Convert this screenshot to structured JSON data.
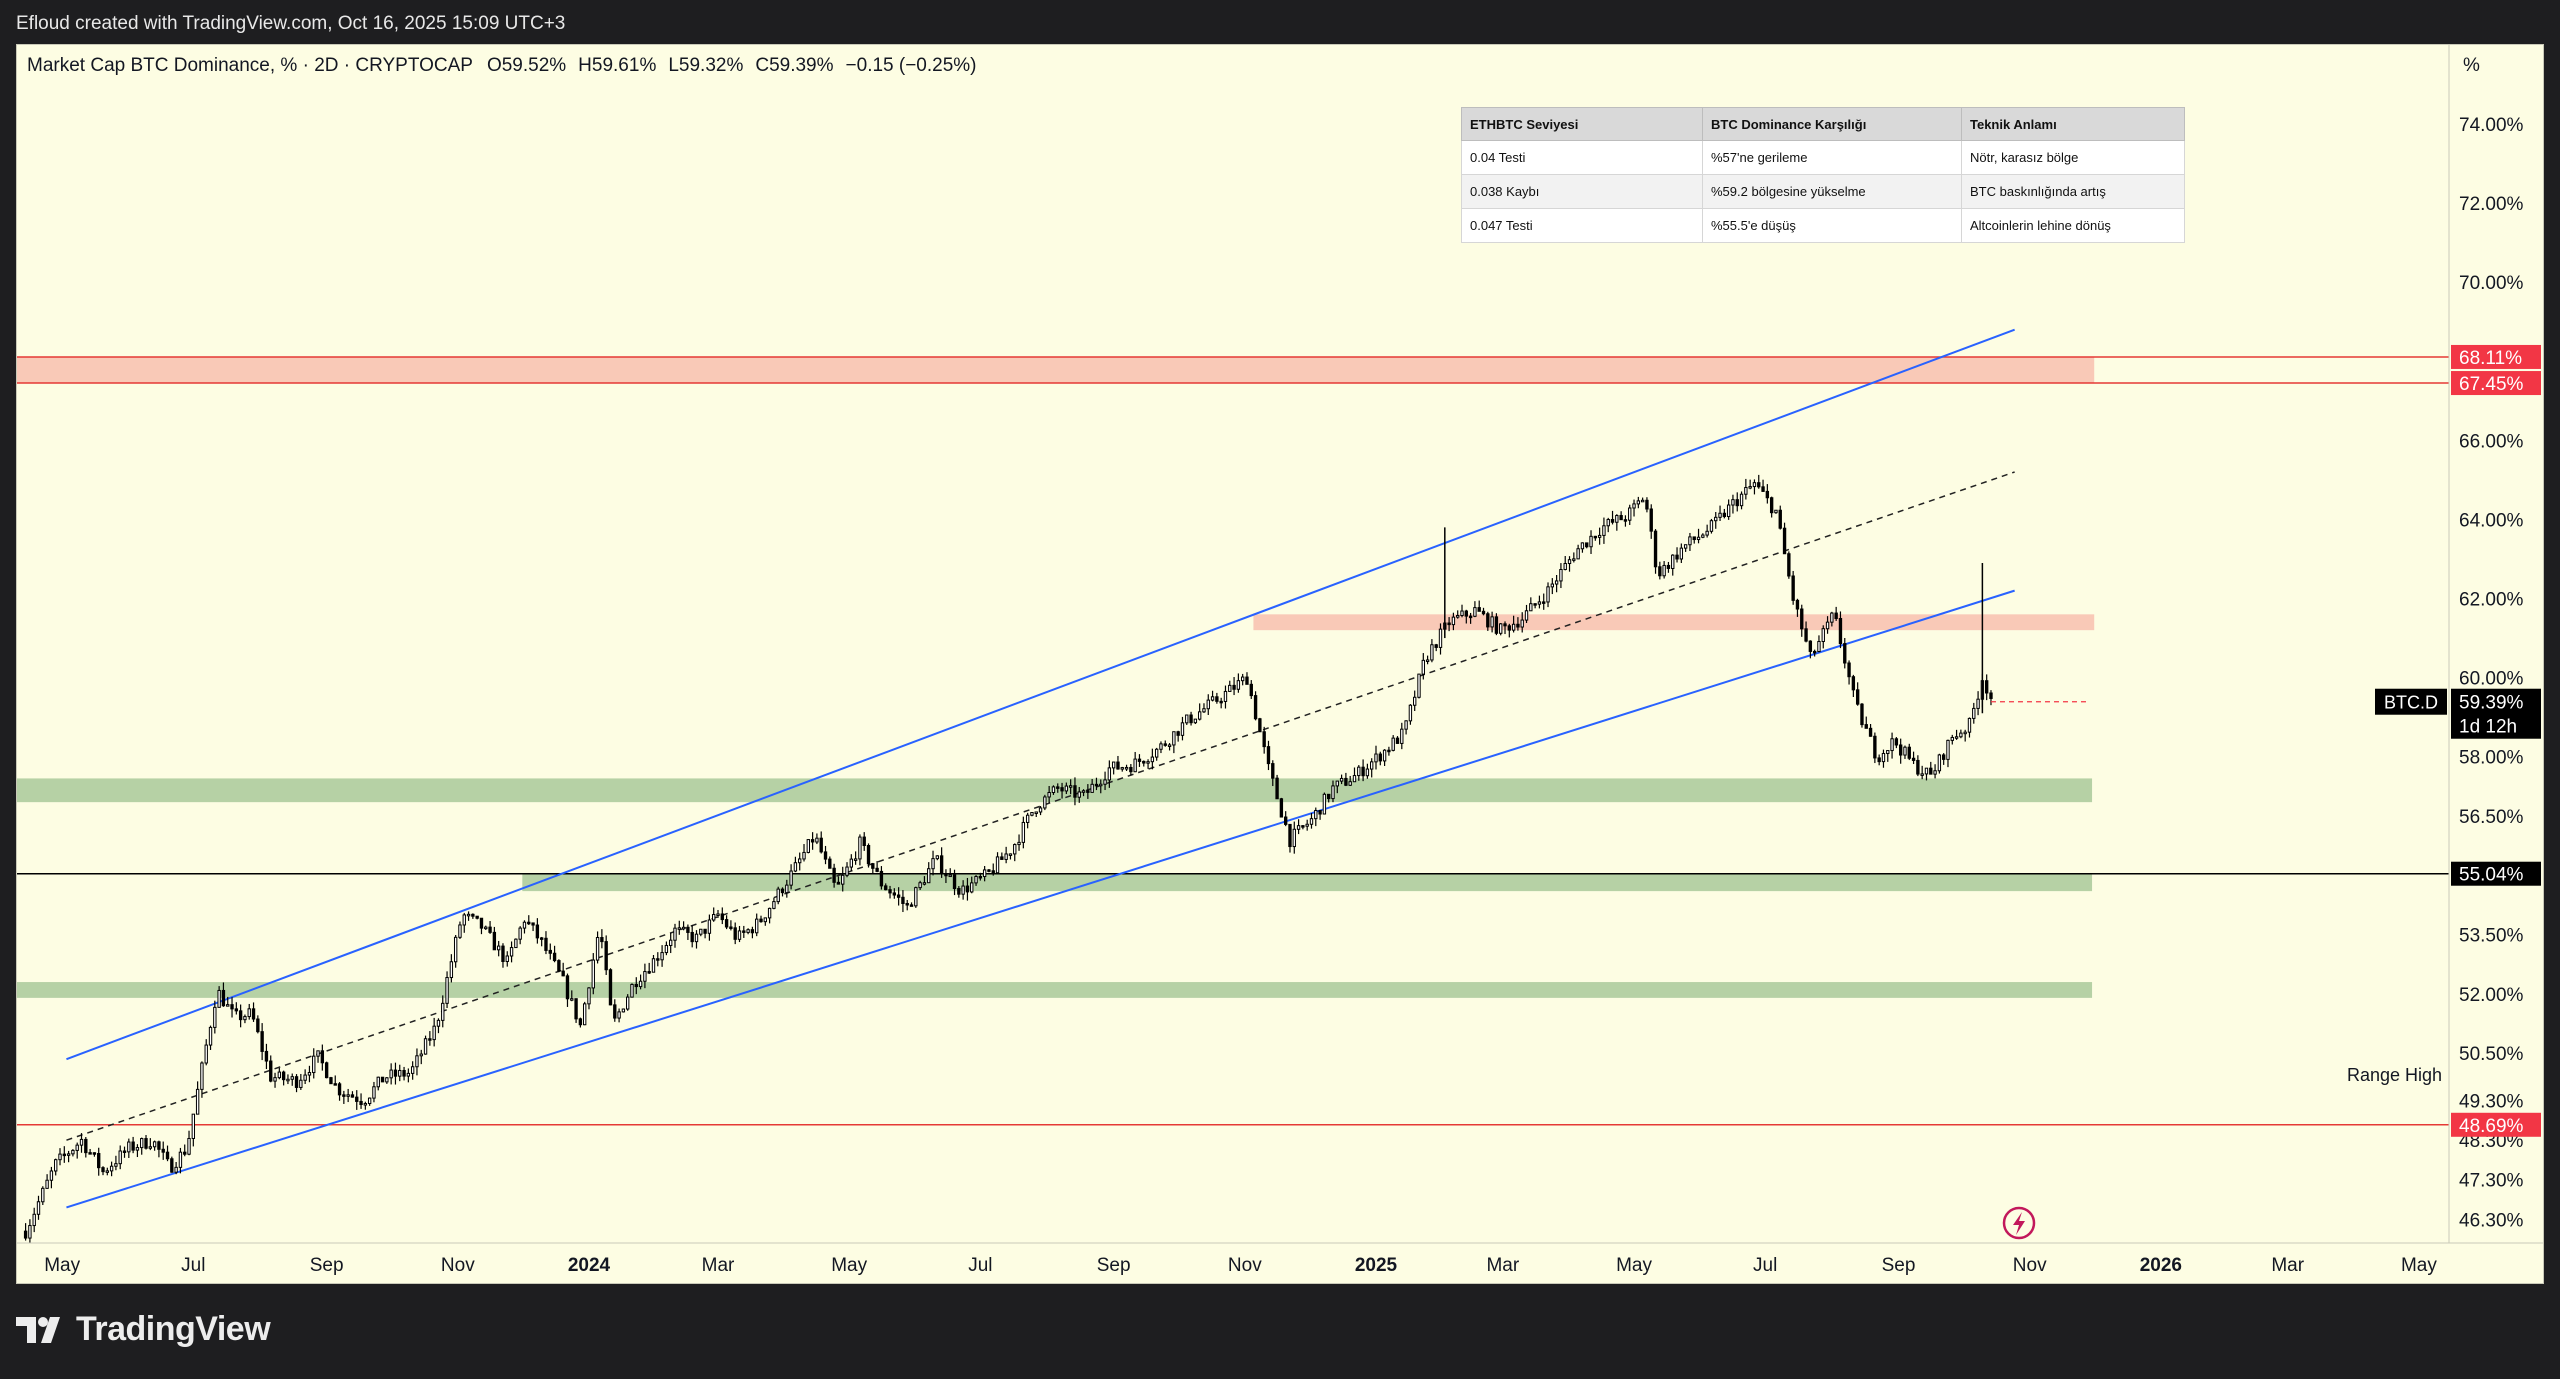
{
  "topbar": {
    "caption": "Efloud created with TradingView.com, Oct 16, 2025 15:09 UTC+3"
  },
  "header": {
    "symbol": "Market Cap BTC Dominance, % · 2D · CRYPTOCAP",
    "open": "O59.52%",
    "high": "H59.61%",
    "low": "L59.32%",
    "close": "C59.39%",
    "change": "−0.15 (−0.25%)"
  },
  "price_axis_unit": "%",
  "table": {
    "headers": [
      "ETHBTC Seviyesi",
      "BTC Dominance Karşılığı",
      "Teknik Anlamı"
    ],
    "rows": [
      [
        "0.04 Testi",
        "%57'ne gerileme",
        "Nötr, karasız bölge"
      ],
      [
        "0.038 Kaybı",
        "%59.2 bölgesine yükselme",
        "BTC baskınlığında artış"
      ],
      [
        "0.047 Testi",
        "%55.5'e düşüş",
        "Altcoinlerin lehine dönüş"
      ]
    ]
  },
  "annotations": {
    "range_high": "Range High"
  },
  "footer": {
    "brand": "TradingView",
    "logo_icon": "tradingview-logo-icon"
  },
  "colors": {
    "candle_body": "#ffffff",
    "candle_outline": "#000000",
    "channel": "#2962ff",
    "red_zone": "#f7b7a8",
    "green_zone": "#a9c99a",
    "red_line": "#e53935",
    "label_red": "#f23645",
    "background": "#fdfde3"
  },
  "chart_data": {
    "type": "candlestick",
    "title": "Market Cap BTC Dominance, % · 2D · CRYPTOCAP",
    "series": [
      {
        "name": "BTC.D"
      }
    ],
    "last_price": "59.39%",
    "last_label": "BTC.D",
    "countdown": "1d 12h",
    "ylim": [
      45.7,
      76.0
    ],
    "y_ticks": [
      "74.00%",
      "72.00%",
      "70.00%",
      "66.00%",
      "64.00%",
      "62.00%",
      "60.00%",
      "58.00%",
      "56.50%",
      "53.50%",
      "52.00%",
      "50.50%",
      "49.30%",
      "48.30%",
      "47.30%",
      "46.30%"
    ],
    "y_tick_values": [
      74.0,
      72.0,
      70.0,
      66.0,
      64.0,
      62.0,
      60.0,
      58.0,
      56.5,
      53.5,
      52.0,
      50.5,
      49.3,
      48.3,
      47.3,
      46.3
    ],
    "x_range": [
      "2023-04-10",
      "2026-05-15"
    ],
    "x_ticks": [
      {
        "date": "2023-05-01",
        "label": "May",
        "bold": false
      },
      {
        "date": "2023-07-01",
        "label": "Jul",
        "bold": false
      },
      {
        "date": "2023-09-01",
        "label": "Sep",
        "bold": false
      },
      {
        "date": "2023-11-01",
        "label": "Nov",
        "bold": false
      },
      {
        "date": "2024-01-01",
        "label": "2024",
        "bold": true
      },
      {
        "date": "2024-03-01",
        "label": "Mar",
        "bold": false
      },
      {
        "date": "2024-05-01",
        "label": "May",
        "bold": false
      },
      {
        "date": "2024-07-01",
        "label": "Jul",
        "bold": false
      },
      {
        "date": "2024-09-01",
        "label": "Sep",
        "bold": false
      },
      {
        "date": "2024-11-01",
        "label": "Nov",
        "bold": false
      },
      {
        "date": "2025-01-01",
        "label": "2025",
        "bold": true
      },
      {
        "date": "2025-03-01",
        "label": "Mar",
        "bold": false
      },
      {
        "date": "2025-05-01",
        "label": "May",
        "bold": false
      },
      {
        "date": "2025-07-01",
        "label": "Jul",
        "bold": false
      },
      {
        "date": "2025-09-01",
        "label": "Sep",
        "bold": false
      },
      {
        "date": "2025-11-01",
        "label": "Nov",
        "bold": false
      },
      {
        "date": "2026-01-01",
        "label": "2026",
        "bold": true
      },
      {
        "date": "2026-03-01",
        "label": "Mar",
        "bold": false
      },
      {
        "date": "2026-05-01",
        "label": "May",
        "bold": false
      }
    ],
    "price_path": [
      [
        "2023-04-14",
        46.0
      ],
      [
        "2023-04-28",
        47.7
      ],
      [
        "2023-05-10",
        48.3
      ],
      [
        "2023-05-20",
        47.5
      ],
      [
        "2023-06-01",
        48.1
      ],
      [
        "2023-06-12",
        48.3
      ],
      [
        "2023-06-20",
        47.6
      ],
      [
        "2023-06-28",
        48.1
      ],
      [
        "2023-07-06",
        50.4
      ],
      [
        "2023-07-12",
        52.1
      ],
      [
        "2023-07-20",
        51.4
      ],
      [
        "2023-07-28",
        51.5
      ],
      [
        "2023-08-06",
        49.9
      ],
      [
        "2023-08-18",
        49.8
      ],
      [
        "2023-08-28",
        50.4
      ],
      [
        "2023-09-06",
        49.6
      ],
      [
        "2023-09-18",
        49.3
      ],
      [
        "2023-09-28",
        49.9
      ],
      [
        "2023-10-10",
        50.0
      ],
      [
        "2023-10-22",
        51.2
      ],
      [
        "2023-11-03",
        54.0
      ],
      [
        "2023-11-12",
        53.7
      ],
      [
        "2023-11-24",
        52.8
      ],
      [
        "2023-12-02",
        53.9
      ],
      [
        "2023-12-10",
        53.3
      ],
      [
        "2023-12-20",
        52.3
      ],
      [
        "2023-12-28",
        51.2
      ],
      [
        "2024-01-06",
        53.7
      ],
      [
        "2024-01-12",
        51.2
      ],
      [
        "2024-01-22",
        52.3
      ],
      [
        "2024-02-01",
        52.9
      ],
      [
        "2024-02-10",
        53.6
      ],
      [
        "2024-02-20",
        53.4
      ],
      [
        "2024-03-01",
        54.0
      ],
      [
        "2024-03-10",
        53.4
      ],
      [
        "2024-03-20",
        53.8
      ],
      [
        "2024-04-05",
        55.1
      ],
      [
        "2024-04-15",
        56.0
      ],
      [
        "2024-04-25",
        54.6
      ],
      [
        "2024-05-06",
        55.8
      ],
      [
        "2024-05-16",
        54.8
      ],
      [
        "2024-05-28",
        54.2
      ],
      [
        "2024-06-10",
        55.4
      ],
      [
        "2024-06-22",
        54.6
      ],
      [
        "2024-07-04",
        55.0
      ],
      [
        "2024-07-16",
        55.7
      ],
      [
        "2024-07-26",
        56.7
      ],
      [
        "2024-08-06",
        57.2
      ],
      [
        "2024-08-18",
        57.0
      ],
      [
        "2024-08-30",
        57.7
      ],
      [
        "2024-09-10",
        57.8
      ],
      [
        "2024-09-22",
        58.2
      ],
      [
        "2024-10-05",
        58.9
      ],
      [
        "2024-10-18",
        59.4
      ],
      [
        "2024-11-02",
        60.0
      ],
      [
        "2024-11-12",
        57.7
      ],
      [
        "2024-11-22",
        55.9
      ],
      [
        "2024-12-02",
        56.4
      ],
      [
        "2024-12-12",
        57.2
      ],
      [
        "2024-12-22",
        57.5
      ],
      [
        "2025-01-02",
        58.0
      ],
      [
        "2025-01-14",
        58.6
      ],
      [
        "2025-01-24",
        60.5
      ],
      [
        "2025-02-04",
        61.4
      ],
      [
        "2025-02-16",
        61.7
      ],
      [
        "2025-02-28",
        61.2
      ],
      [
        "2025-03-10",
        61.5
      ],
      [
        "2025-03-22",
        62.2
      ],
      [
        "2025-04-04",
        63.2
      ],
      [
        "2025-04-16",
        63.8
      ],
      [
        "2025-04-28",
        64.1
      ],
      [
        "2025-05-06",
        64.6
      ],
      [
        "2025-05-12",
        62.6
      ],
      [
        "2025-05-24",
        63.3
      ],
      [
        "2025-06-06",
        63.8
      ],
      [
        "2025-06-16",
        64.4
      ],
      [
        "2025-06-26",
        64.9
      ],
      [
        "2025-07-06",
        64.2
      ],
      [
        "2025-07-14",
        62.0
      ],
      [
        "2025-07-22",
        60.5
      ],
      [
        "2025-08-02",
        61.6
      ],
      [
        "2025-08-12",
        59.3
      ],
      [
        "2025-08-22",
        58.0
      ],
      [
        "2025-08-30",
        58.4
      ],
      [
        "2025-09-08",
        57.8
      ],
      [
        "2025-09-16",
        57.5
      ],
      [
        "2025-09-26",
        58.5
      ],
      [
        "2025-10-04",
        58.8
      ],
      [
        "2025-10-10",
        60.0
      ],
      [
        "2025-10-14",
        59.5
      ]
    ],
    "spikes": [
      {
        "date": "2025-02-02",
        "high": 63.8,
        "low": 61.0
      },
      {
        "date": "2025-10-10",
        "high": 62.9,
        "low": 59.1
      }
    ],
    "channel": {
      "upper": [
        [
          "2023-05-03",
          50.35
        ],
        [
          "2025-10-25",
          68.8
        ]
      ],
      "lower": [
        [
          "2023-05-03",
          46.6
        ],
        [
          "2025-10-25",
          62.2
        ]
      ],
      "mid": [
        [
          "2023-05-03",
          48.3
        ],
        [
          "2025-10-25",
          65.2
        ]
      ]
    },
    "zones": [
      {
        "color": "red",
        "from": 67.45,
        "to": 68.11,
        "start": "2023-04-10",
        "end": "2025-12-01"
      },
      {
        "color": "red",
        "from": 61.2,
        "to": 61.6,
        "start": "2024-11-05",
        "end": "2025-12-01"
      },
      {
        "color": "green",
        "from": 56.85,
        "to": 57.45,
        "start": "2023-04-10",
        "end": "2025-11-30"
      },
      {
        "color": "green",
        "from": 54.6,
        "to": 55.04,
        "start": "2023-12-01",
        "end": "2025-11-30"
      },
      {
        "color": "green",
        "from": 51.9,
        "to": 52.3,
        "start": "2023-04-10",
        "end": "2025-11-30"
      }
    ],
    "levels": [
      {
        "value": 68.11,
        "label": "68.11%",
        "style": "red"
      },
      {
        "value": 67.45,
        "label": "67.45%",
        "style": "red"
      },
      {
        "value": 55.04,
        "label": "55.04%",
        "style": "black"
      },
      {
        "value": 48.69,
        "label": "48.69%",
        "style": "red"
      }
    ],
    "range_high_level": 48.69,
    "last_value": 59.39
  }
}
